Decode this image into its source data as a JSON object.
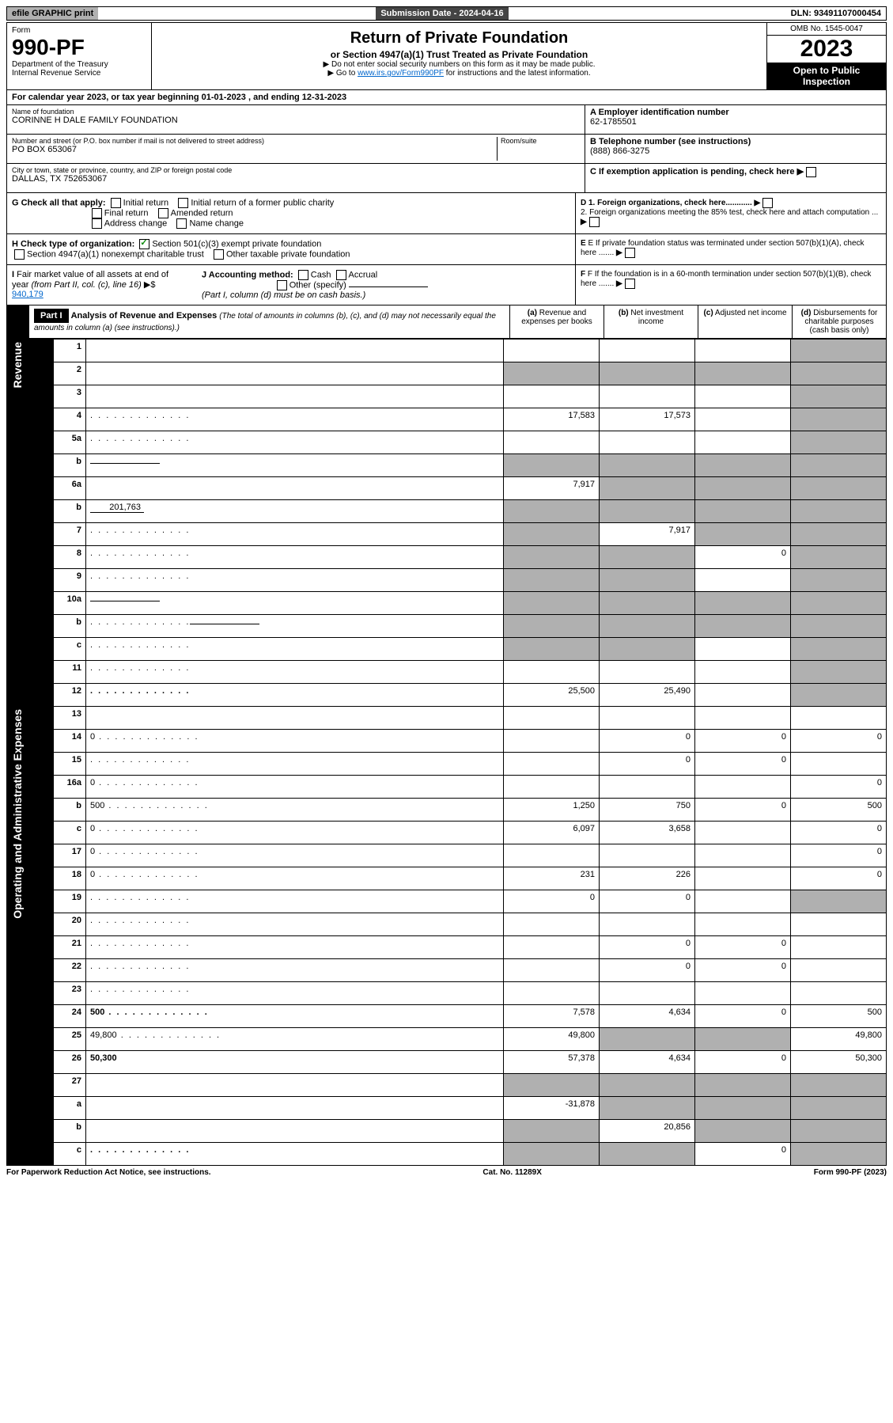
{
  "topbar": {
    "efile": "efile GRAPHIC print",
    "submission": "Submission Date - 2024-04-16",
    "dln": "DLN: 93491107000454"
  },
  "header": {
    "form_label": "Form",
    "form_num": "990-PF",
    "dept1": "Department of the Treasury",
    "dept2": "Internal Revenue Service",
    "title": "Return of Private Foundation",
    "subtitle": "or Section 4947(a)(1) Trust Treated as Private Foundation",
    "note1": "▶ Do not enter social security numbers on this form as it may be made public.",
    "note2_pre": "▶ Go to ",
    "note2_link": "www.irs.gov/Form990PF",
    "note2_post": " for instructions and the latest information.",
    "omb": "OMB No. 1545-0047",
    "year": "2023",
    "open": "Open to Public Inspection"
  },
  "cal": "For calendar year 2023, or tax year beginning 01-01-2023                          , and ending 12-31-2023",
  "info": {
    "name_lbl": "Name of foundation",
    "name": "CORINNE H DALE FAMILY FOUNDATION",
    "addr_lbl": "Number and street (or P.O. box number if mail is not delivered to street address)",
    "addr": "PO BOX 653067",
    "room_lbl": "Room/suite",
    "city_lbl": "City or town, state or province, country, and ZIP or foreign postal code",
    "city": "DALLAS, TX  752653067",
    "a_lbl": "A Employer identification number",
    "a_val": "62-1785501",
    "b_lbl": "B Telephone number (see instructions)",
    "b_val": "(888) 866-3275",
    "c_lbl": "C If exemption application is pending, check here",
    "d1": "D 1. Foreign organizations, check here............",
    "d2": "2. Foreign organizations meeting the 85% test, check here and attach computation ...",
    "e_lbl": "E If private foundation status was terminated under section 507(b)(1)(A), check here .......",
    "f_lbl": "F If the foundation is in a 60-month termination under section 507(b)(1)(B), check here ......."
  },
  "g": {
    "label": "G Check all that apply:",
    "opts": [
      "Initial return",
      "Initial return of a former public charity",
      "Final return",
      "Amended return",
      "Address change",
      "Name change"
    ]
  },
  "h": {
    "label": "H Check type of organization:",
    "opt1": "Section 501(c)(3) exempt private foundation",
    "opt2": "Section 4947(a)(1) nonexempt charitable trust",
    "opt3": "Other taxable private foundation"
  },
  "i": {
    "label": "I Fair market value of all assets at end of year (from Part II, col. (c), line 16) ▶$",
    "val": "940,179"
  },
  "j": {
    "label": "J Accounting method:",
    "cash": "Cash",
    "accrual": "Accrual",
    "other": "Other (specify)",
    "note": "(Part I, column (d) must be on cash basis.)"
  },
  "part1": {
    "label": "Part I",
    "title": "Analysis of Revenue and Expenses",
    "note": "(The total of amounts in columns (b), (c), and (d) may not necessarily equal the amounts in column (a) (see instructions).)",
    "col_a": "(a) Revenue and expenses per books",
    "col_b": "(b) Net investment income",
    "col_c": "(c) Adjusted net income",
    "col_d": "(d) Disbursements for charitable purposes (cash basis only)"
  },
  "side_labels": {
    "revenue": "Revenue",
    "expenses": "Operating and Administrative Expenses"
  },
  "rows": [
    {
      "n": "1",
      "d": "",
      "a": "",
      "b": "",
      "c": "",
      "shade_d": true
    },
    {
      "n": "2",
      "d": "",
      "a": "",
      "b": "",
      "c": "",
      "shade_all": true,
      "bold_not": true
    },
    {
      "n": "3",
      "d": "",
      "a": "",
      "b": "",
      "c": "",
      "shade_d": true
    },
    {
      "n": "4",
      "d": "",
      "a": "17,583",
      "b": "17,573",
      "c": "",
      "shade_d": true,
      "dots": true
    },
    {
      "n": "5a",
      "d": "",
      "a": "",
      "b": "",
      "c": "",
      "shade_d": true,
      "dots": true
    },
    {
      "n": "b",
      "d": "",
      "a": "",
      "b": "",
      "c": "",
      "shade_all": true,
      "inline": true
    },
    {
      "n": "6a",
      "d": "",
      "a": "7,917",
      "b": "",
      "c": "",
      "shade_bcd": true
    },
    {
      "n": "b",
      "d": "",
      "a": "",
      "b": "",
      "c": "",
      "shade_all": true,
      "inline_val": "201,763"
    },
    {
      "n": "7",
      "d": "",
      "a": "",
      "b": "7,917",
      "c": "",
      "shade_a": true,
      "shade_cd": true,
      "dots": true
    },
    {
      "n": "8",
      "d": "",
      "a": "",
      "b": "",
      "c": "0",
      "shade_ab": true,
      "shade_d": true,
      "dots": true
    },
    {
      "n": "9",
      "d": "",
      "a": "",
      "b": "",
      "c": "",
      "shade_ab": true,
      "shade_d": true,
      "dots": true
    },
    {
      "n": "10a",
      "d": "",
      "a": "",
      "b": "",
      "c": "",
      "shade_all": true,
      "inline": true
    },
    {
      "n": "b",
      "d": "",
      "a": "",
      "b": "",
      "c": "",
      "shade_all": true,
      "inline": true,
      "dots": true
    },
    {
      "n": "c",
      "d": "",
      "a": "",
      "b": "",
      "c": "",
      "shade_ab": true,
      "shade_d": true,
      "dots": true
    },
    {
      "n": "11",
      "d": "",
      "a": "",
      "b": "",
      "c": "",
      "shade_d": true,
      "dots": true
    },
    {
      "n": "12",
      "d": "",
      "a": "25,500",
      "b": "25,490",
      "c": "",
      "shade_d": true,
      "bold": true,
      "dots": true
    },
    {
      "n": "13",
      "d": "",
      "a": "",
      "b": "",
      "c": ""
    },
    {
      "n": "14",
      "d": "0",
      "a": "",
      "b": "0",
      "c": "0",
      "dots": true
    },
    {
      "n": "15",
      "d": "",
      "a": "",
      "b": "0",
      "c": "0",
      "dots": true
    },
    {
      "n": "16a",
      "d": "0",
      "a": "",
      "b": "",
      "c": "",
      "dots": true
    },
    {
      "n": "b",
      "d": "500",
      "a": "1,250",
      "b": "750",
      "c": "0",
      "dots": true
    },
    {
      "n": "c",
      "d": "0",
      "a": "6,097",
      "b": "3,658",
      "c": "",
      "dots": true
    },
    {
      "n": "17",
      "d": "0",
      "a": "",
      "b": "",
      "c": "",
      "dots": true
    },
    {
      "n": "18",
      "d": "0",
      "a": "231",
      "b": "226",
      "c": "",
      "dots": true
    },
    {
      "n": "19",
      "d": "",
      "a": "0",
      "b": "0",
      "c": "",
      "shade_d": true,
      "dots": true
    },
    {
      "n": "20",
      "d": "",
      "a": "",
      "b": "",
      "c": "",
      "dots": true
    },
    {
      "n": "21",
      "d": "",
      "a": "",
      "b": "0",
      "c": "0",
      "dots": true
    },
    {
      "n": "22",
      "d": "",
      "a": "",
      "b": "0",
      "c": "0",
      "dots": true
    },
    {
      "n": "23",
      "d": "",
      "a": "",
      "b": "",
      "c": "",
      "dots": true
    },
    {
      "n": "24",
      "d": "500",
      "a": "7,578",
      "b": "4,634",
      "c": "0",
      "bold": true,
      "dots": true
    },
    {
      "n": "25",
      "d": "49,800",
      "a": "49,800",
      "b": "",
      "c": "",
      "shade_bc": true,
      "dots": true
    },
    {
      "n": "26",
      "d": "50,300",
      "a": "57,378",
      "b": "4,634",
      "c": "0",
      "bold": true
    },
    {
      "n": "27",
      "d": "",
      "a": "",
      "b": "",
      "c": "",
      "shade_all": true
    },
    {
      "n": "a",
      "d": "",
      "a": "-31,878",
      "b": "",
      "c": "",
      "shade_bcd": true,
      "bold": true
    },
    {
      "n": "b",
      "d": "",
      "a": "",
      "b": "20,856",
      "c": "",
      "shade_a": true,
      "shade_cd": true,
      "bold": true
    },
    {
      "n": "c",
      "d": "",
      "a": "",
      "b": "",
      "c": "0",
      "shade_ab": true,
      "shade_d": true,
      "bold": true,
      "dots": true
    }
  ],
  "footer": {
    "left": "For Paperwork Reduction Act Notice, see instructions.",
    "mid": "Cat. No. 11289X",
    "right": "Form 990-PF (2023)"
  }
}
